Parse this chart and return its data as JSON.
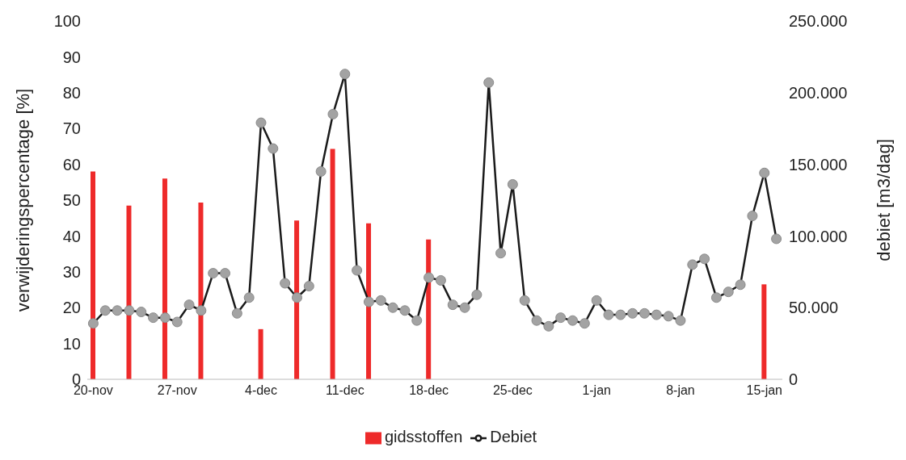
{
  "chart_data": {
    "type": "bar",
    "categories": [
      "20-nov",
      null,
      null,
      null,
      null,
      null,
      null,
      "27-nov",
      null,
      null,
      null,
      null,
      null,
      null,
      "4-dec",
      null,
      null,
      null,
      null,
      null,
      null,
      "11-dec",
      null,
      null,
      null,
      null,
      null,
      null,
      "18-dec",
      null,
      null,
      null,
      null,
      null,
      null,
      "25-dec",
      null,
      null,
      null,
      null,
      null,
      null,
      "1-jan",
      null,
      null,
      null,
      null,
      null,
      null,
      "8-jan",
      null,
      null,
      null,
      null,
      null,
      null,
      "15-jan",
      null
    ],
    "series": [
      {
        "name": "gidsstoffen",
        "color": "#ee2a2a",
        "values": [
          58,
          null,
          null,
          48.5,
          null,
          null,
          56,
          null,
          null,
          49.3,
          null,
          null,
          null,
          null,
          14,
          null,
          null,
          44.3,
          null,
          null,
          64.3,
          null,
          null,
          43.5,
          null,
          null,
          null,
          null,
          39,
          null,
          null,
          null,
          null,
          null,
          null,
          null,
          null,
          null,
          null,
          null,
          null,
          null,
          null,
          null,
          null,
          null,
          null,
          null,
          null,
          null,
          null,
          null,
          null,
          null,
          null,
          null,
          26.5,
          null
        ]
      },
      {
        "name": "Debiet",
        "type": "line",
        "axis": "y2",
        "color": "#1a1a1a",
        "values": [
          39000,
          48000,
          48000,
          48000,
          47000,
          43000,
          43000,
          40000,
          52000,
          48000,
          74000,
          74000,
          46000,
          57000,
          179000,
          161000,
          67000,
          57000,
          65000,
          145000,
          185000,
          213000,
          76000,
          54000,
          55000,
          50000,
          48000,
          41000,
          71000,
          69000,
          52000,
          50000,
          59000,
          207000,
          88000,
          136000,
          55000,
          41000,
          37000,
          43000,
          41000,
          39000,
          55000,
          45000,
          45000,
          46000,
          46000,
          45000,
          44000,
          41000,
          80000,
          84000,
          57000,
          61000,
          66000,
          114000,
          144000,
          98000
        ]
      }
    ],
    "ylabel": "verwijderingspercentage [%]",
    "y2label": "debiet [m3/dag]",
    "ylim": [
      0,
      100
    ],
    "yticks": [
      0,
      10,
      20,
      30,
      40,
      50,
      60,
      70,
      80,
      90,
      100
    ],
    "y2lim": [
      0,
      250000
    ],
    "y2ticks": [
      {
        "value": 0,
        "label": "0"
      },
      {
        "value": 50000,
        "label": "50.000"
      },
      {
        "value": 100000,
        "label": "100.000"
      },
      {
        "value": 150000,
        "label": "150.000"
      },
      {
        "value": 200000,
        "label": "200.000"
      },
      {
        "value": 250000,
        "label": "250.000"
      }
    ],
    "marker": "circle",
    "legend": "bottom",
    "grid": false
  }
}
